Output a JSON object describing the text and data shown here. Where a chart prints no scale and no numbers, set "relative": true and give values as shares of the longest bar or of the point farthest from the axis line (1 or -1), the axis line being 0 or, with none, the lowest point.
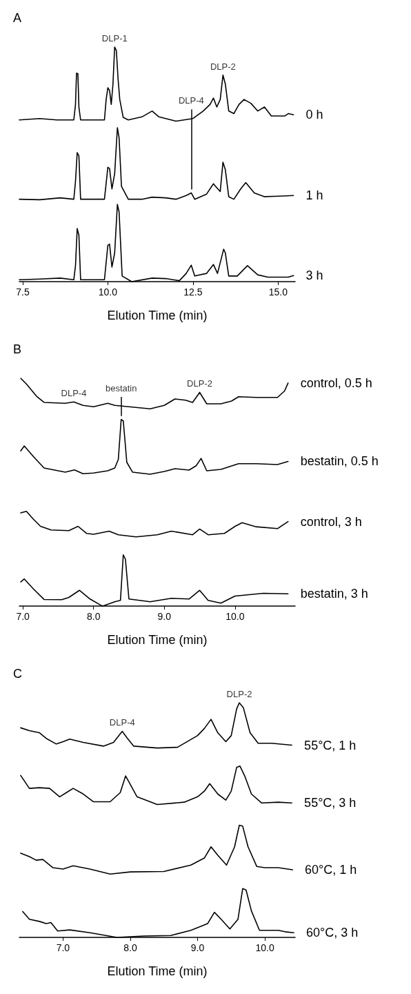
{
  "chart_data": [
    {
      "type": "line",
      "title": "A",
      "xlabel": "Elution Time (min)",
      "relative": true,
      "marker": "none",
      "line_style": "solid",
      "xlim": [
        7.4,
        15.5
      ],
      "xticks": [
        7.5,
        {
          "value": 10,
          "label": "10.0"
        },
        12.5,
        {
          "value": 15,
          "label": "15.0"
        }
      ],
      "annotations": [
        {
          "text": "DLP-1",
          "x": 10.2,
          "y": 1.0
        },
        {
          "text": "DLP-2",
          "x": 13.38,
          "y": 0.88
        },
        {
          "text": "DLP-4",
          "x": 12.45,
          "y": 0.378
        }
      ],
      "series": [
        {
          "name": "0 h",
          "color": "#000000",
          "x": [
            7.4,
            8.0,
            8.5,
            9.0,
            9.05,
            9.08,
            9.12,
            9.15,
            9.2,
            9.9,
            9.95,
            10.0,
            10.05,
            10.1,
            10.15,
            10.2,
            10.25,
            10.3,
            10.35,
            10.45,
            10.6,
            11.0,
            11.3,
            11.5,
            12.0,
            12.5,
            12.8,
            13.0,
            13.1,
            13.2,
            13.3,
            13.38,
            13.45,
            13.55,
            13.7,
            13.85,
            14.0,
            14.2,
            14.4,
            14.6,
            14.8,
            15.2,
            15.3,
            15.45
          ],
          "values": [
            0.689,
            0.695,
            0.689,
            0.689,
            0.755,
            0.888,
            0.886,
            0.744,
            0.689,
            0.689,
            0.776,
            0.826,
            0.815,
            0.755,
            0.842,
            1.0,
            0.984,
            0.864,
            0.776,
            0.7,
            0.689,
            0.702,
            0.727,
            0.702,
            0.684,
            0.695,
            0.727,
            0.755,
            0.782,
            0.744,
            0.776,
            0.88,
            0.842,
            0.727,
            0.716,
            0.755,
            0.776,
            0.76,
            0.727,
            0.744,
            0.706,
            0.706,
            0.716,
            0.711
          ]
        },
        {
          "name": "1 h",
          "color": "#000000",
          "x": [
            7.4,
            8.0,
            8.6,
            9.0,
            9.05,
            9.1,
            9.15,
            9.2,
            9.9,
            10.0,
            10.05,
            10.12,
            10.2,
            10.28,
            10.33,
            10.4,
            10.6,
            11.0,
            11.3,
            11.7,
            12.0,
            12.3,
            12.45,
            12.55,
            12.9,
            13.1,
            13.2,
            13.3,
            13.38,
            13.45,
            13.55,
            13.7,
            13.9,
            14.05,
            14.3,
            14.6,
            15.0,
            15.45
          ],
          "values": [
            0.351,
            0.349,
            0.357,
            0.351,
            0.427,
            0.55,
            0.536,
            0.351,
            0.351,
            0.487,
            0.482,
            0.395,
            0.46,
            0.656,
            0.613,
            0.406,
            0.351,
            0.351,
            0.36,
            0.357,
            0.351,
            0.367,
            0.378,
            0.351,
            0.373,
            0.417,
            0.4,
            0.384,
            0.509,
            0.477,
            0.362,
            0.351,
            0.395,
            0.422,
            0.378,
            0.362,
            0.364,
            0.367
          ]
        },
        {
          "name": "3 h",
          "color": "#000000",
          "x": [
            7.4,
            8.0,
            8.6,
            9.0,
            9.05,
            9.1,
            9.15,
            9.2,
            9.9,
            10.0,
            10.05,
            10.12,
            10.2,
            10.28,
            10.33,
            10.42,
            10.7,
            11.3,
            11.7,
            12.1,
            12.3,
            12.45,
            12.55,
            12.9,
            13.1,
            13.22,
            13.4,
            13.45,
            13.55,
            13.8,
            14.1,
            14.4,
            14.7,
            15.3,
            15.45
          ],
          "values": [
            0.008,
            0.011,
            0.015,
            0.008,
            0.068,
            0.226,
            0.198,
            0.008,
            0.008,
            0.155,
            0.16,
            0.062,
            0.122,
            0.329,
            0.297,
            0.024,
            0,
            0.015,
            0.013,
            0.004,
            0.035,
            0.07,
            0.024,
            0.035,
            0.073,
            0.035,
            0.138,
            0.122,
            0.024,
            0.024,
            0.068,
            0.029,
            0.019,
            0.019,
            0.026
          ]
        }
      ]
    },
    {
      "type": "line",
      "title": "B",
      "xlabel": "Elution Time (min)",
      "relative": true,
      "marker": "none",
      "line_style": "solid",
      "xlim": [
        6.95,
        10.85
      ],
      "xticks": [
        {
          "value": 7,
          "label": "7.0"
        },
        {
          "value": 8,
          "label": "8.0"
        },
        {
          "value": 9,
          "label": "9.0"
        },
        {
          "value": 10,
          "label": "10.0"
        }
      ],
      "annotations": [
        {
          "text": "DLP-4",
          "x": 7.72,
          "y": 0.896
        },
        {
          "text": "bestatin",
          "x": 8.39,
          "y": 0.819
        },
        {
          "text": "DLP-2",
          "x": 9.5,
          "y": 0.938
        }
      ],
      "series": [
        {
          "name": "control, 0.5 h",
          "color": "#000000",
          "x": [
            6.97,
            7.05,
            7.2,
            7.3,
            7.6,
            7.72,
            7.85,
            8.0,
            8.2,
            8.3,
            8.5,
            8.8,
            9.0,
            9.15,
            9.3,
            9.4,
            9.5,
            9.6,
            9.8,
            9.95,
            10.05,
            10.3,
            10.6,
            10.7,
            10.75
          ],
          "values": [
            1.0,
            0.975,
            0.919,
            0.894,
            0.89,
            0.896,
            0.881,
            0.875,
            0.89,
            0.881,
            0.875,
            0.866,
            0.881,
            0.909,
            0.904,
            0.894,
            0.938,
            0.888,
            0.888,
            0.9,
            0.919,
            0.916,
            0.916,
            0.944,
            0.979
          ]
        },
        {
          "name": "bestatin, 0.5 h",
          "color": "#000000",
          "x": [
            6.97,
            7.02,
            7.15,
            7.3,
            7.6,
            7.73,
            7.85,
            8.0,
            8.2,
            8.3,
            8.35,
            8.39,
            8.42,
            8.47,
            8.55,
            8.8,
            9.0,
            9.15,
            9.35,
            9.45,
            9.52,
            9.6,
            9.8,
            10.05,
            10.3,
            10.6,
            10.75
          ],
          "values": [
            0.681,
            0.703,
            0.656,
            0.606,
            0.588,
            0.598,
            0.581,
            0.584,
            0.594,
            0.606,
            0.644,
            0.819,
            0.813,
            0.631,
            0.588,
            0.579,
            0.591,
            0.603,
            0.597,
            0.616,
            0.648,
            0.594,
            0.6,
            0.625,
            0.625,
            0.621,
            0.635
          ]
        },
        {
          "name": "control, 3 h",
          "color": "#000000",
          "x": [
            6.97,
            7.05,
            7.15,
            7.25,
            7.4,
            7.65,
            7.78,
            7.9,
            8.0,
            8.22,
            8.35,
            8.6,
            8.9,
            9.1,
            9.4,
            9.5,
            9.62,
            9.85,
            10.0,
            10.1,
            10.3,
            10.6,
            10.75
          ],
          "values": [
            0.409,
            0.416,
            0.381,
            0.35,
            0.334,
            0.331,
            0.35,
            0.319,
            0.315,
            0.329,
            0.313,
            0.304,
            0.313,
            0.329,
            0.313,
            0.338,
            0.313,
            0.319,
            0.35,
            0.366,
            0.348,
            0.34,
            0.371
          ]
        },
        {
          "name": "bestatin, 3 h",
          "color": "#000000",
          "x": [
            6.97,
            7.02,
            7.15,
            7.3,
            7.55,
            7.65,
            7.8,
            7.95,
            8.1,
            8.13,
            8.3,
            8.38,
            8.42,
            8.45,
            8.5,
            8.8,
            9.1,
            9.35,
            9.5,
            9.62,
            9.8,
            10.0,
            10.4,
            10.75
          ],
          "values": [
            0.106,
            0.119,
            0.075,
            0.029,
            0.028,
            0.038,
            0.069,
            0.031,
            0.004,
            0,
            0.019,
            0.025,
            0.225,
            0.206,
            0.031,
            0.019,
            0.034,
            0.031,
            0.069,
            0.025,
            0.013,
            0.044,
            0.056,
            0.054
          ]
        }
      ]
    },
    {
      "type": "line",
      "title": "C",
      "xlabel": "Elution Time (min)",
      "relative": true,
      "marker": "none",
      "line_style": "solid",
      "xlim": [
        6.35,
        10.45
      ],
      "xticks": [
        {
          "value": 7,
          "label": "7.0"
        },
        {
          "value": 8,
          "label": "8.0"
        },
        {
          "value": 9,
          "label": "9.0"
        },
        {
          "value": 10,
          "label": "10.0"
        }
      ],
      "annotations": [
        {
          "text": "DLP-4",
          "x": 7.88,
          "y": 0.878
        },
        {
          "text": "DLP-2",
          "x": 9.62,
          "y": 1.0
        }
      ],
      "series": [
        {
          "name": "55°C, 1 h",
          "color": "#000000",
          "x": [
            6.37,
            6.5,
            6.65,
            6.75,
            6.9,
            7.0,
            7.1,
            7.3,
            7.6,
            7.75,
            7.88,
            7.95,
            8.05,
            8.4,
            8.7,
            9.0,
            9.1,
            9.2,
            9.3,
            9.42,
            9.5,
            9.58,
            9.62,
            9.68,
            9.78,
            9.9,
            10.1,
            10.4
          ],
          "values": [
            0.893,
            0.881,
            0.872,
            0.848,
            0.824,
            0.834,
            0.845,
            0.831,
            0.815,
            0.831,
            0.878,
            0.851,
            0.815,
            0.807,
            0.81,
            0.86,
            0.89,
            0.929,
            0.872,
            0.834,
            0.86,
            0.973,
            1.0,
            0.979,
            0.872,
            0.827,
            0.827,
            0.819
          ]
        },
        {
          "name": "55°C, 3 h",
          "color": "#000000",
          "x": [
            6.37,
            6.5,
            6.65,
            6.8,
            6.95,
            7.05,
            7.15,
            7.3,
            7.45,
            7.7,
            7.85,
            7.93,
            8.0,
            8.1,
            8.4,
            8.8,
            9.0,
            9.1,
            9.18,
            9.3,
            9.42,
            9.5,
            9.58,
            9.63,
            9.7,
            9.8,
            9.95,
            10.2,
            10.4
          ],
          "values": [
            0.69,
            0.635,
            0.638,
            0.635,
            0.599,
            0.617,
            0.635,
            0.611,
            0.578,
            0.578,
            0.617,
            0.688,
            0.652,
            0.599,
            0.566,
            0.576,
            0.599,
            0.623,
            0.655,
            0.611,
            0.585,
            0.623,
            0.724,
            0.73,
            0.688,
            0.611,
            0.573,
            0.576,
            0.573
          ]
        },
        {
          "name": "60°C, 1 h",
          "color": "#000000",
          "x": [
            6.37,
            6.5,
            6.6,
            6.7,
            6.85,
            7.0,
            7.15,
            7.4,
            7.7,
            8.0,
            8.5,
            8.9,
            9.1,
            9.2,
            9.3,
            9.43,
            9.55,
            9.62,
            9.67,
            9.75,
            9.88,
            10.0,
            10.2,
            10.41
          ],
          "values": [
            0.359,
            0.344,
            0.329,
            0.332,
            0.297,
            0.291,
            0.305,
            0.291,
            0.27,
            0.279,
            0.281,
            0.308,
            0.338,
            0.386,
            0.35,
            0.308,
            0.386,
            0.478,
            0.474,
            0.386,
            0.302,
            0.297,
            0.297,
            0.288
          ]
        },
        {
          "name": "60°C, 3 h",
          "color": "#000000",
          "x": [
            6.4,
            6.5,
            6.65,
            6.75,
            6.82,
            6.92,
            7.1,
            7.4,
            7.8,
            8.2,
            8.6,
            8.9,
            9.15,
            9.25,
            9.35,
            9.48,
            9.6,
            9.67,
            9.72,
            9.8,
            9.92,
            10.2,
            10.3,
            10.43
          ],
          "values": [
            0.11,
            0.077,
            0.068,
            0.059,
            0.063,
            0.027,
            0.032,
            0.02,
            0,
            0.006,
            0.008,
            0.03,
            0.059,
            0.107,
            0.077,
            0.036,
            0.077,
            0.208,
            0.202,
            0.113,
            0.03,
            0.03,
            0.024,
            0.02
          ]
        }
      ]
    }
  ]
}
